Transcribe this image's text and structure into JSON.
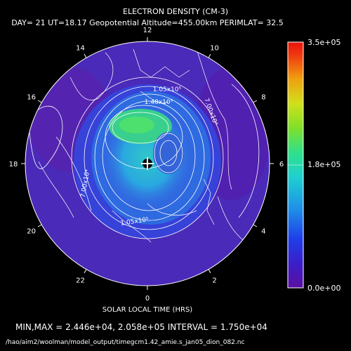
{
  "header": {
    "title": "ELECTRON DENSITY (CM-3)",
    "subtitle": "DAY= 21  UT=18.17  Geopotential Altitude=455.00km  PERIMLAT= 32.5"
  },
  "map": {
    "hour_labels": [
      "12",
      "14",
      "16",
      "18",
      "20",
      "22",
      "0",
      "2",
      "4",
      "6",
      "8",
      "10"
    ],
    "contour_labels": {
      "top": "1.05x10⁵",
      "upper_mid": "1.40x10⁵",
      "right": "7.00x10⁴",
      "left": "7.00x10⁴",
      "bottom": "1.05x10⁵"
    },
    "axis_label": "SOLAR LOCAL TIME (HRS)"
  },
  "colorbar": {
    "max_label": "3.5e+05",
    "mid_label": "1.8e+05",
    "min_label": "0.0e+00",
    "colors": [
      "#5a0fa0",
      "#3a1fc8",
      "#1f3fe8",
      "#1f8fe8",
      "#1fd0d0",
      "#2fe08a",
      "#7fe02a",
      "#d0e01a",
      "#f0a010",
      "#f04010",
      "#e8120a"
    ]
  },
  "footer": {
    "minmax": "MIN,MAX =  2.446e+04, 2.058e+05  INTERVAL =  1.750e+04",
    "path": "/hao/aim2/woolman/model_output/timegcm1.42_amie.s_jan05_dion_082.nc"
  }
}
